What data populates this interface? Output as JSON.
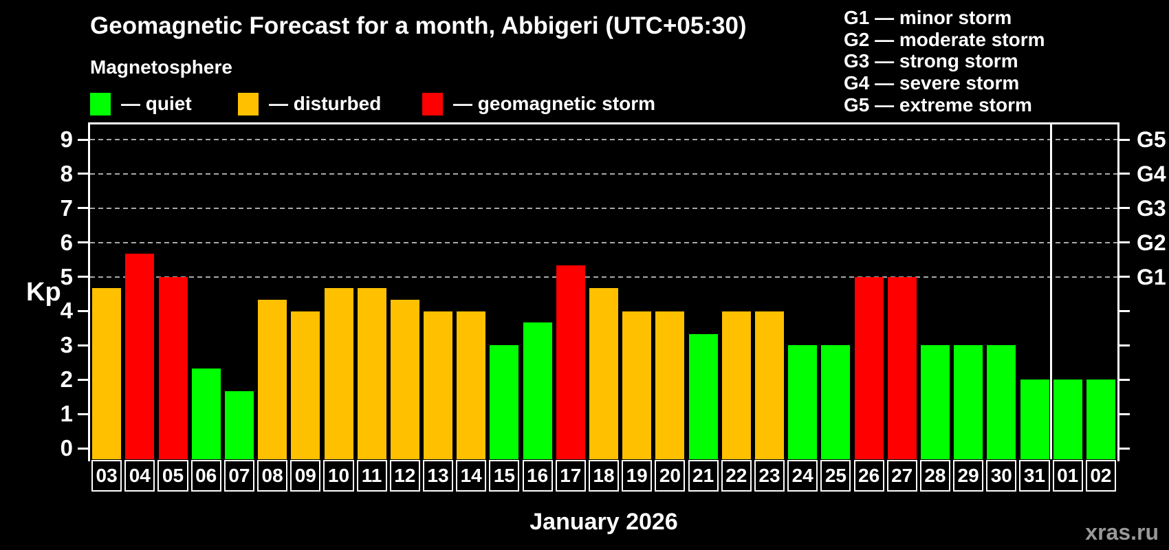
{
  "header": {
    "subtitle": "Magnetosphere",
    "legend_items": [
      {
        "key": "quiet",
        "label": "— quiet"
      },
      {
        "key": "disturbed",
        "label": "— disturbed"
      },
      {
        "key": "storm",
        "label": "— geomagnetic storm"
      }
    ],
    "g_scale_legend": [
      "G1 — minor storm",
      "G2 — moderate storm",
      "G3 — strong storm",
      "G4 — severe storm",
      "G5 — extreme storm"
    ]
  },
  "colors": {
    "quiet": "#00ff00",
    "disturbed": "#ffc000",
    "storm": "#ff0000",
    "grid": "#aaaaaa",
    "axis": "#ffffff",
    "watermark": "#999999"
  },
  "axes": {
    "y_label": "Kp",
    "y_ticks": [
      0,
      1,
      2,
      3,
      4,
      5,
      6,
      7,
      8,
      9
    ],
    "right_labels": [
      {
        "text": "G1",
        "kp": 5
      },
      {
        "text": "G2",
        "kp": 6
      },
      {
        "text": "G3",
        "kp": 7
      },
      {
        "text": "G4",
        "kp": 8
      },
      {
        "text": "G5",
        "kp": 9
      }
    ],
    "x_label": "January 2026"
  },
  "watermark": "xras.ru",
  "chart_data": {
    "type": "bar",
    "title": "Geomagnetic Forecast for a month, Abbigeri (UTC+05:30)",
    "xlabel": "January 2026",
    "ylabel": "Kp",
    "ylim": [
      0,
      9
    ],
    "grid_levels_kp": [
      5,
      6,
      7,
      8,
      9
    ],
    "legend_position": "top-left",
    "categories": [
      "03",
      "04",
      "05",
      "06",
      "07",
      "08",
      "09",
      "10",
      "11",
      "12",
      "13",
      "14",
      "15",
      "16",
      "17",
      "18",
      "19",
      "20",
      "21",
      "22",
      "23",
      "24",
      "25",
      "26",
      "27",
      "28",
      "29",
      "30",
      "31",
      "01",
      "02"
    ],
    "values": [
      4.67,
      5.67,
      5.0,
      2.33,
      1.67,
      4.33,
      4.0,
      4.67,
      4.67,
      4.33,
      4.0,
      4.0,
      3.0,
      3.67,
      5.33,
      4.67,
      4.0,
      4.0,
      3.33,
      4.0,
      4.0,
      3.0,
      3.0,
      5.0,
      5.0,
      3.0,
      3.0,
      3.0,
      2.0,
      2.0,
      2.0
    ],
    "states": [
      "disturbed",
      "storm",
      "storm",
      "quiet",
      "quiet",
      "disturbed",
      "disturbed",
      "disturbed",
      "disturbed",
      "disturbed",
      "disturbed",
      "disturbed",
      "quiet",
      "quiet",
      "storm",
      "disturbed",
      "disturbed",
      "disturbed",
      "quiet",
      "disturbed",
      "disturbed",
      "quiet",
      "quiet",
      "storm",
      "storm",
      "quiet",
      "quiet",
      "quiet",
      "quiet",
      "quiet",
      "quiet"
    ],
    "month_boundary_index": 29
  }
}
